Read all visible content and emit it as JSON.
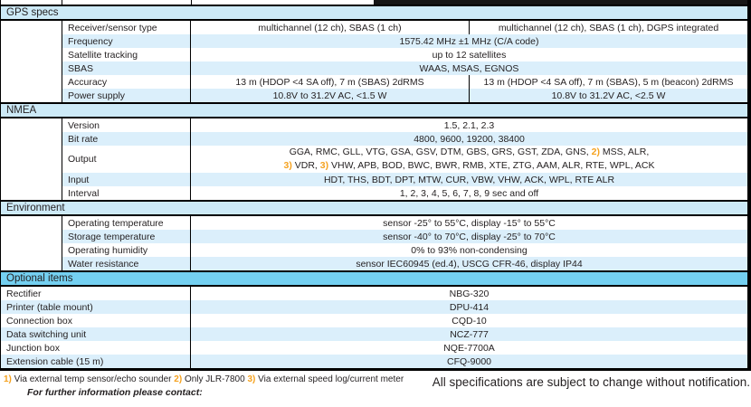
{
  "colors": {
    "section_band": "#cdeaf7",
    "optional_band": "#74d0f1",
    "row_stripe": "#dbeffb",
    "marker_orange": "#f5a21f",
    "border": "#000000"
  },
  "sections": {
    "gps": {
      "title": "GPS specs",
      "rows": [
        {
          "label": "Receiver/sensor type",
          "v1": "multichannel (12 ch), SBAS (1 ch)",
          "v2": "multichannel (12 ch), SBAS (1 ch), DGPS integrated"
        },
        {
          "label": "Frequency",
          "v": "1575.42 MHz ±1 MHz (C/A code)"
        },
        {
          "label": "Satellite tracking",
          "v": "up to 12 satellites"
        },
        {
          "label": "SBAS",
          "v": "WAAS, MSAS, EGNOS"
        },
        {
          "label": "Accuracy",
          "v1": "13 m (HDOP <4 SA off), 7 m (SBAS) 2dRMS",
          "v2": "13 m (HDOP <4 SA off), 7 m (SBAS), 5 m (beacon) 2dRMS"
        },
        {
          "label": "Power supply",
          "v1": "10.8V to 31.2V AC, <1.5 W",
          "v2": "10.8V to 31.2V AC, <2.5 W"
        }
      ]
    },
    "nmea": {
      "title": "NMEA",
      "rows": [
        {
          "label": "Version",
          "v": "1.5, 2.1, 2.3"
        },
        {
          "label": "Bit rate",
          "v": "4800, 9600, 19200, 38400"
        },
        {
          "label": "Output",
          "line1_a": "GGA, RMC, GLL, VTG, GSA, GSV, DTM, GBS, GRS, GST, ZDA, GNS, ",
          "line1_m": "2)",
          "line1_b": " MSS, ALR,",
          "line2_m1": "3)",
          "line2_a": " VDR, ",
          "line2_m2": "3)",
          "line2_b": " VHW, APB, BOD, BWC, BWR, RMB, XTE, ZTG, AAM, ALR, RTE, WPL, ACK"
        },
        {
          "label": "Input",
          "v": "HDT, THS, BDT, DPT, MTW, CUR, VBW, VHW, ACK, WPL, RTE ALR"
        },
        {
          "label": "Interval",
          "v": "1, 2, 3, 4, 5, 6, 7, 8, 9 sec and off"
        }
      ]
    },
    "environment": {
      "title": "Environment",
      "rows": [
        {
          "label": "Operating temperature",
          "v": "sensor -25° to 55°C, display -15° to 55°C"
        },
        {
          "label": "Storage temperature",
          "v": "sensor -40° to 70°C, display -25° to 70°C"
        },
        {
          "label": "Operating humidity",
          "v": "0% to 93% non-condensing"
        },
        {
          "label": "Water resistance",
          "v": "sensor IEC60945 (ed.4), USCG CFR-46, display IP44"
        }
      ]
    },
    "optional": {
      "title": "Optional items",
      "rows": [
        {
          "label": "Rectifier",
          "v": "NBG-320"
        },
        {
          "label": "Printer (table mount)",
          "v": "DPU-414"
        },
        {
          "label": "Connection box",
          "v": "CQD-10"
        },
        {
          "label": "Data switching unit",
          "v": "NCZ-777"
        },
        {
          "label": "Junction box",
          "v": "NQE-7700A"
        },
        {
          "label": "Extension cable (15 m)",
          "v": "CFQ-9000"
        }
      ]
    }
  },
  "footer": {
    "footnotes": {
      "m1": "1)",
      "t1": " Via external temp sensor/echo sounder ",
      "m2": "2)",
      "t2": " Only JLR-7800 ",
      "m3": "3)",
      "t3": " Via external speed log/current meter"
    },
    "contact": "For further information please contact:",
    "notice": "All specifications are subject to change without notification."
  }
}
